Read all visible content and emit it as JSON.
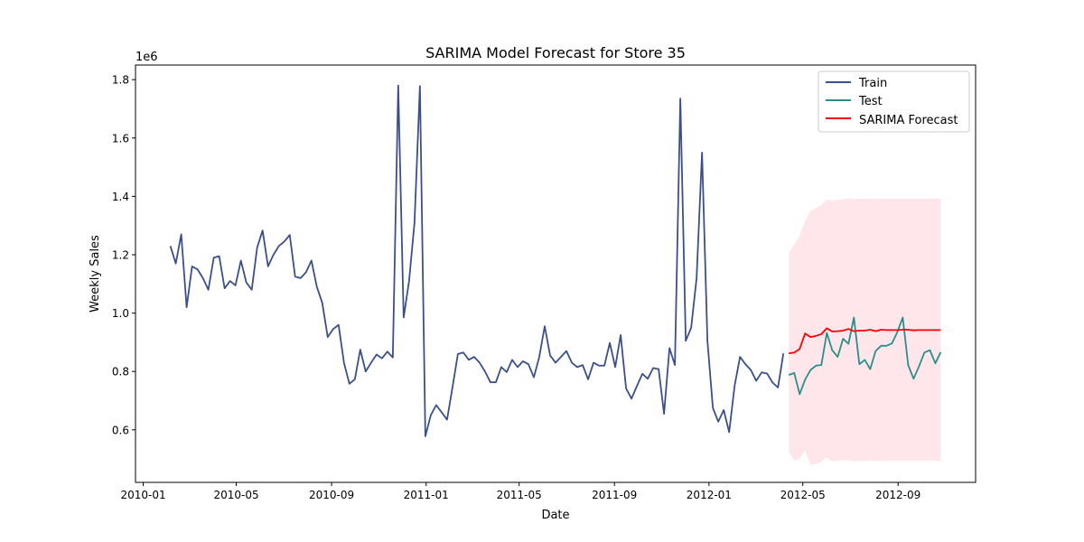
{
  "chart_data": {
    "type": "line",
    "title": "SARIMA Model Forecast for Store 35",
    "xlabel": "Date",
    "ylabel": "Weekly Sales",
    "y_offset_label": "1e6",
    "y_scale": 1000000,
    "xlim": [
      "2009-12-22",
      "2012-12-10"
    ],
    "ylim": [
      420000,
      1850000
    ],
    "x_ticks": [
      "2010-01",
      "2010-05",
      "2010-09",
      "2011-01",
      "2011-05",
      "2011-09",
      "2012-01",
      "2012-05",
      "2012-09"
    ],
    "y_ticks": [
      600000,
      800000,
      1000000,
      1200000,
      1400000,
      1600000,
      1800000
    ],
    "y_tick_labels": [
      "0.6",
      "0.8",
      "1.0",
      "1.2",
      "1.4",
      "1.6",
      "1.8"
    ],
    "grid": false,
    "legend_position": "top-right",
    "colors": {
      "train": "#3b4f8a",
      "test": "#2a8f8a",
      "forecast": "#ff0000",
      "band": "#ffc0cb"
    },
    "series": [
      {
        "name": "Train",
        "start_date": "2010-02-05",
        "step_days": 7,
        "values": [
          1230000,
          1170000,
          1270000,
          1020000,
          1160000,
          1150000,
          1120000,
          1080000,
          1190000,
          1195000,
          1085000,
          1110000,
          1095000,
          1180000,
          1105000,
          1080000,
          1225000,
          1283000,
          1160000,
          1200000,
          1230000,
          1245000,
          1268000,
          1125000,
          1120000,
          1140000,
          1180000,
          1090000,
          1035000,
          918000,
          945000,
          960000,
          830000,
          758000,
          773000,
          875000,
          800000,
          830000,
          858000,
          845000,
          868000,
          848000,
          1780000,
          985000,
          1110000,
          1310000,
          1778000,
          578000,
          650000,
          685000,
          660000,
          635000,
          745000,
          860000,
          865000,
          840000,
          850000,
          830000,
          800000,
          763000,
          763000,
          815000,
          798000,
          840000,
          815000,
          835000,
          825000,
          780000,
          850000,
          955000,
          855000,
          830000,
          850000,
          870000,
          830000,
          815000,
          822000,
          773000,
          830000,
          820000,
          820000,
          898000,
          815000,
          925000,
          742000,
          707000,
          750000,
          792000,
          775000,
          812000,
          808000,
          655000,
          880000,
          822000,
          1735000,
          905000,
          950000,
          1120000,
          1550000,
          905000,
          675000,
          628000,
          668000,
          592000,
          750000,
          850000,
          825000,
          805000,
          768000,
          797000,
          793000,
          762000,
          745000,
          862000
        ]
      },
      {
        "name": "Test",
        "start_date": "2012-04-13",
        "step_days": 7,
        "values": [
          788000,
          795000,
          722000,
          772000,
          805000,
          820000,
          822000,
          932000,
          873000,
          850000,
          912000,
          895000,
          985000,
          825000,
          840000,
          808000,
          870000,
          888000,
          888000,
          896000,
          935000,
          985000,
          822000,
          775000,
          818000,
          865000,
          873000,
          828000,
          866000
        ]
      },
      {
        "name": "SARIMA Forecast",
        "start_date": "2012-04-13",
        "step_days": 7,
        "values": [
          862000,
          865000,
          877000,
          930000,
          918000,
          922000,
          928000,
          948000,
          937000,
          938000,
          940000,
          946000,
          938000,
          940000,
          940000,
          943000,
          938000,
          943000,
          942000,
          942000,
          942000,
          943000,
          943000,
          941000,
          942000,
          942000,
          942000,
          942000,
          942000
        ],
        "ci_lower": [
          525000,
          495000,
          500000,
          530000,
          480000,
          482000,
          490000,
          505000,
          492000,
          495000,
          495000,
          497000,
          492000,
          494000,
          493000,
          495000,
          493000,
          494000,
          494000,
          494000,
          494000,
          494000,
          494000,
          494000,
          494000,
          494000,
          494000,
          494000,
          494000
        ],
        "ci_upper": [
          1205000,
          1235000,
          1265000,
          1315000,
          1350000,
          1360000,
          1370000,
          1390000,
          1385000,
          1388000,
          1390000,
          1393000,
          1390000,
          1392000,
          1392000,
          1393000,
          1391000,
          1392000,
          1392000,
          1392000,
          1392000,
          1392000,
          1392000,
          1392000,
          1392000,
          1392000,
          1392000,
          1392000,
          1392000
        ]
      }
    ]
  }
}
